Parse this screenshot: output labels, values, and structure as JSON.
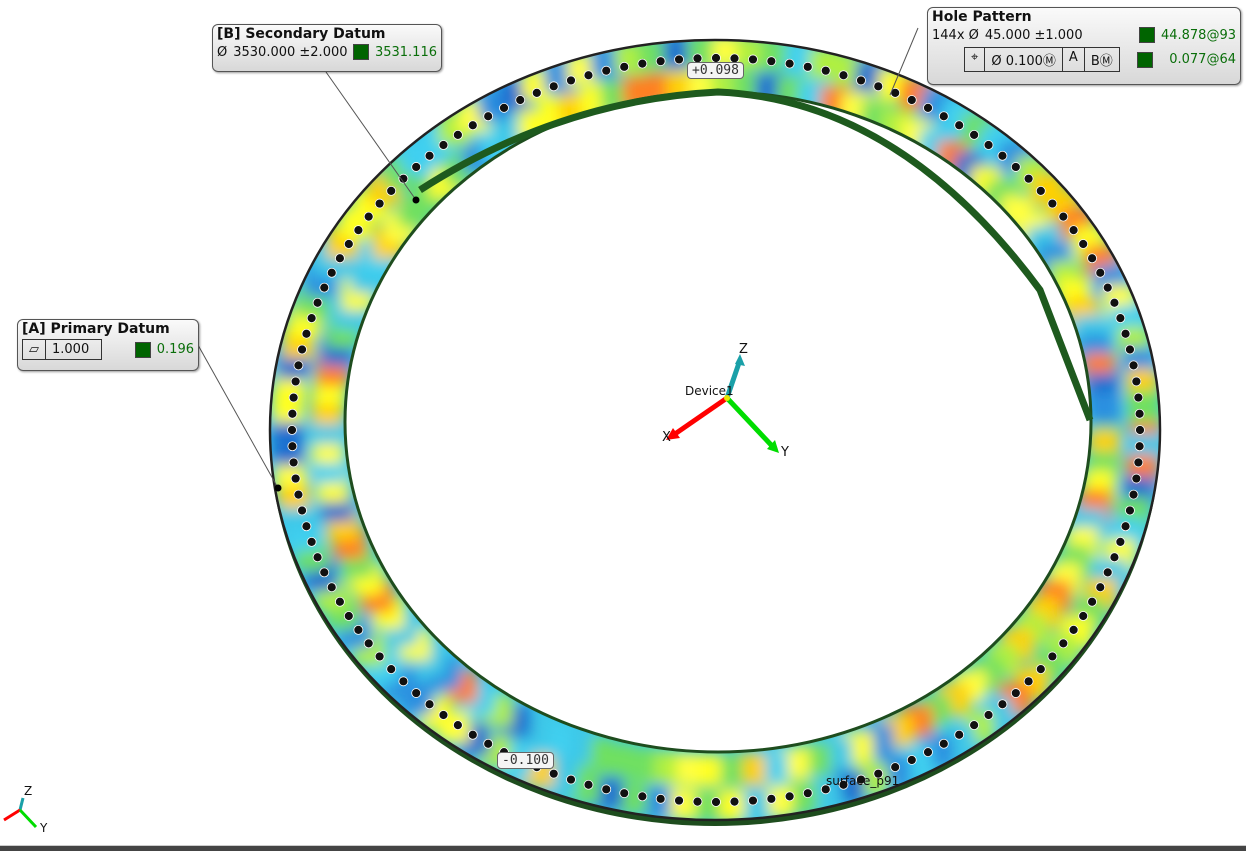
{
  "callouts": {
    "secondary": {
      "title": "[B] Secondary Datum",
      "symbol": "Ø",
      "nominal": "3530.000 ±2.000",
      "measured": "3531.116"
    },
    "primary": {
      "title": "[A] Primary Datum",
      "symbol": "▱",
      "tolerance": "1.000",
      "measured": "0.196"
    },
    "hole_pattern": {
      "title": "Hole Pattern",
      "count_prefix": "144x Ø",
      "nominal": "45.000 ±1.000",
      "measured_size": "44.878@93",
      "position_symbol": "⌖",
      "position_tol": "Ø 0.100Ⓜ",
      "datum_a": "A",
      "datum_b": "BⓂ",
      "measured_position": "0.077@64"
    }
  },
  "deviation_tags": {
    "max": "+0.098",
    "min": "-0.100"
  },
  "labels": {
    "device": "Device1",
    "surface": "surface_p91"
  },
  "axes": {
    "x": "X",
    "y": "Y",
    "z": "Z"
  },
  "colors": {
    "measured_ok": "#006400",
    "x_axis": "#ff0000",
    "y_axis": "#00dd00",
    "z_axis": "#1aa0a8"
  }
}
